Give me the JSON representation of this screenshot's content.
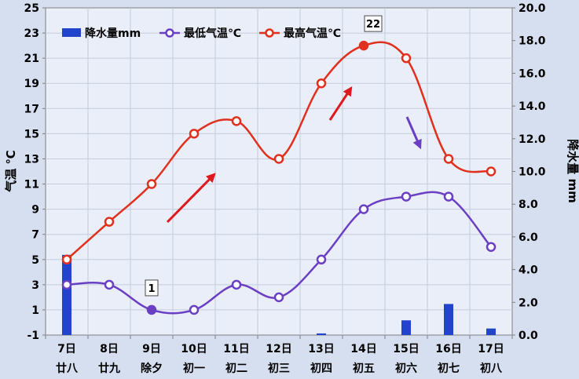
{
  "chart_data": {
    "type": "line",
    "categories": [
      "7日",
      "8日",
      "9日",
      "10日",
      "11日",
      "12日",
      "13日",
      "14日",
      "15日",
      "16日",
      "17日"
    ],
    "lunar_labels": [
      "廿八",
      "廿九",
      "除夕",
      "初一",
      "初二",
      "初三",
      "初四",
      "初五",
      "初六",
      "初七",
      "初八"
    ],
    "ylabel": "气温 ℃",
    "y2label": "降水量 mm",
    "ylim": [
      -1,
      25
    ],
    "y_ticks": [
      -1,
      1,
      3,
      5,
      7,
      9,
      11,
      13,
      15,
      17,
      19,
      21,
      23,
      25
    ],
    "y2lim": [
      0,
      20
    ],
    "y2_ticks": [
      "0.0",
      "2.0",
      "4.0",
      "6.0",
      "8.0",
      "10.0",
      "12.0",
      "14.0",
      "16.0",
      "18.0",
      "20.0"
    ],
    "series": [
      {
        "name": "降水量mm",
        "type": "bar",
        "axis": "right",
        "color": "#2244cc",
        "values": [
          4.9,
          0,
          0,
          0,
          0,
          0,
          0.1,
          0,
          0.9,
          1.9,
          0.4
        ]
      },
      {
        "name": "最低气温℃",
        "type": "line",
        "axis": "left",
        "color": "#6a3fc4",
        "values": [
          3,
          3,
          1,
          1,
          3,
          2,
          5,
          9,
          10,
          10,
          6
        ]
      },
      {
        "name": "最高气温℃",
        "type": "line",
        "axis": "left",
        "color": "#e0301e",
        "values": [
          5,
          8,
          11,
          15,
          16,
          13,
          19,
          22,
          21,
          13,
          12
        ]
      }
    ],
    "annotations": [
      {
        "text": "22",
        "series": "最高气温℃",
        "index": 7
      },
      {
        "text": "1",
        "series": "最低气温℃",
        "index": 2
      }
    ],
    "grid": true,
    "legend": "top-left"
  }
}
